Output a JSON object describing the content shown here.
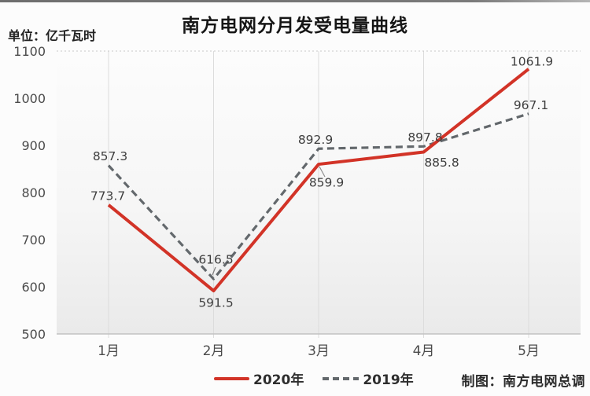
{
  "header": {
    "title": "南方电网分月发受电量曲线",
    "unit_label": "单位：亿千瓦时"
  },
  "footer": {
    "credit": "制图：南方电网总调"
  },
  "chart_data": {
    "type": "line",
    "title": "南方电网分月发受电量曲线",
    "unit": "亿千瓦时",
    "categories": [
      "1月",
      "2月",
      "3月",
      "4月",
      "5月"
    ],
    "series": [
      {
        "name": "2020年",
        "color": "#d23327",
        "line_style": "solid",
        "values": [
          773.7,
          591.5,
          859.9,
          885.8,
          1061.9
        ]
      },
      {
        "name": "2019年",
        "color": "#63686c",
        "line_style": "dashed",
        "values": [
          857.3,
          616.5,
          892.9,
          897.8,
          967.1
        ]
      }
    ],
    "ylim": [
      500,
      1100
    ],
    "ytick_step": 100,
    "ytick_labels": [
      "500",
      "600",
      "700",
      "800",
      "900",
      "1000",
      "1100"
    ],
    "grid": "vertical",
    "legend_position": "bottom"
  },
  "colors": {
    "accent_red": "#d23327",
    "dash_gray": "#63686c",
    "gridline": "#dcdcdc",
    "axis_line": "#c2c2c2"
  }
}
